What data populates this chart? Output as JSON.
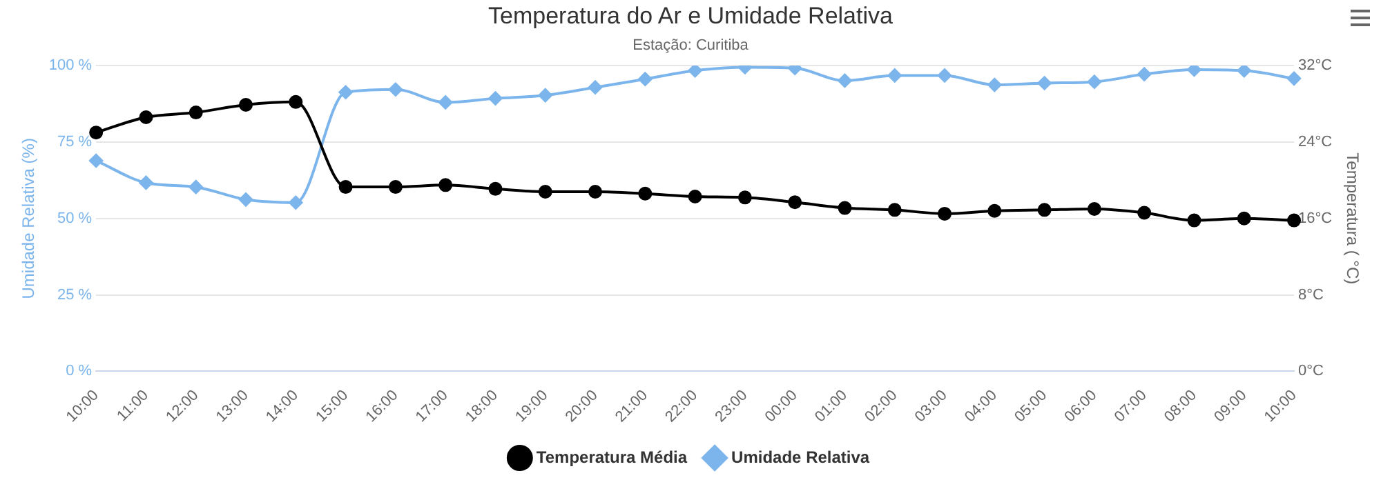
{
  "chart_data": {
    "type": "line",
    "title": "Temperatura do Ar e Umidade Relativa",
    "subtitle": "Estação: Curitiba",
    "ylabel": "Umidade Relativa (%)",
    "y2label": "Temperatura ( °C)",
    "categories": [
      "10:00",
      "11:00",
      "12:00",
      "13:00",
      "14:00",
      "15:00",
      "16:00",
      "17:00",
      "18:00",
      "19:00",
      "20:00",
      "21:00",
      "22:00",
      "23:00",
      "00:00",
      "01:00",
      "02:00",
      "03:00",
      "04:00",
      "05:00",
      "06:00",
      "07:00",
      "08:00",
      "09:00",
      "10:00"
    ],
    "series": [
      {
        "name": "Temperatura Média",
        "color": "#000000",
        "axis": "y2",
        "marker": "circle",
        "values": [
          25.0,
          26.6,
          27.1,
          27.9,
          28.2,
          19.3,
          19.3,
          19.5,
          19.1,
          18.8,
          18.8,
          18.6,
          18.3,
          18.2,
          17.7,
          17.1,
          16.9,
          16.5,
          16.8,
          16.9,
          17.0,
          16.6,
          15.8,
          16.0,
          15.8
        ]
      },
      {
        "name": "Umidade Relativa",
        "color": "#7cb5ec",
        "axis": "y",
        "marker": "diamond",
        "values": [
          68.9,
          61.7,
          60.3,
          56.2,
          55.2,
          91.3,
          92.2,
          88.0,
          89.3,
          90.3,
          92.9,
          95.6,
          98.4,
          99.5,
          99.2,
          95.1,
          96.8,
          96.8,
          93.7,
          94.3,
          94.7,
          97.2,
          98.7,
          98.4,
          95.8
        ]
      }
    ],
    "ylim": [
      0,
      100
    ],
    "yticks": [
      {
        "value": 0,
        "label": "0 %"
      },
      {
        "value": 25,
        "label": "25 %"
      },
      {
        "value": 50,
        "label": "50 %"
      },
      {
        "value": 75,
        "label": "75 %"
      },
      {
        "value": 100,
        "label": "100 %"
      }
    ],
    "y2lim": [
      0,
      32
    ],
    "y2ticks": [
      {
        "value": 0,
        "label": "0°C"
      },
      {
        "value": 8,
        "label": "8°C"
      },
      {
        "value": 16,
        "label": "16°C"
      },
      {
        "value": 24,
        "label": "24°C"
      },
      {
        "value": 32,
        "label": "32°C"
      }
    ],
    "grid": "y",
    "legend": "bottom",
    "line_style": "solid"
  }
}
